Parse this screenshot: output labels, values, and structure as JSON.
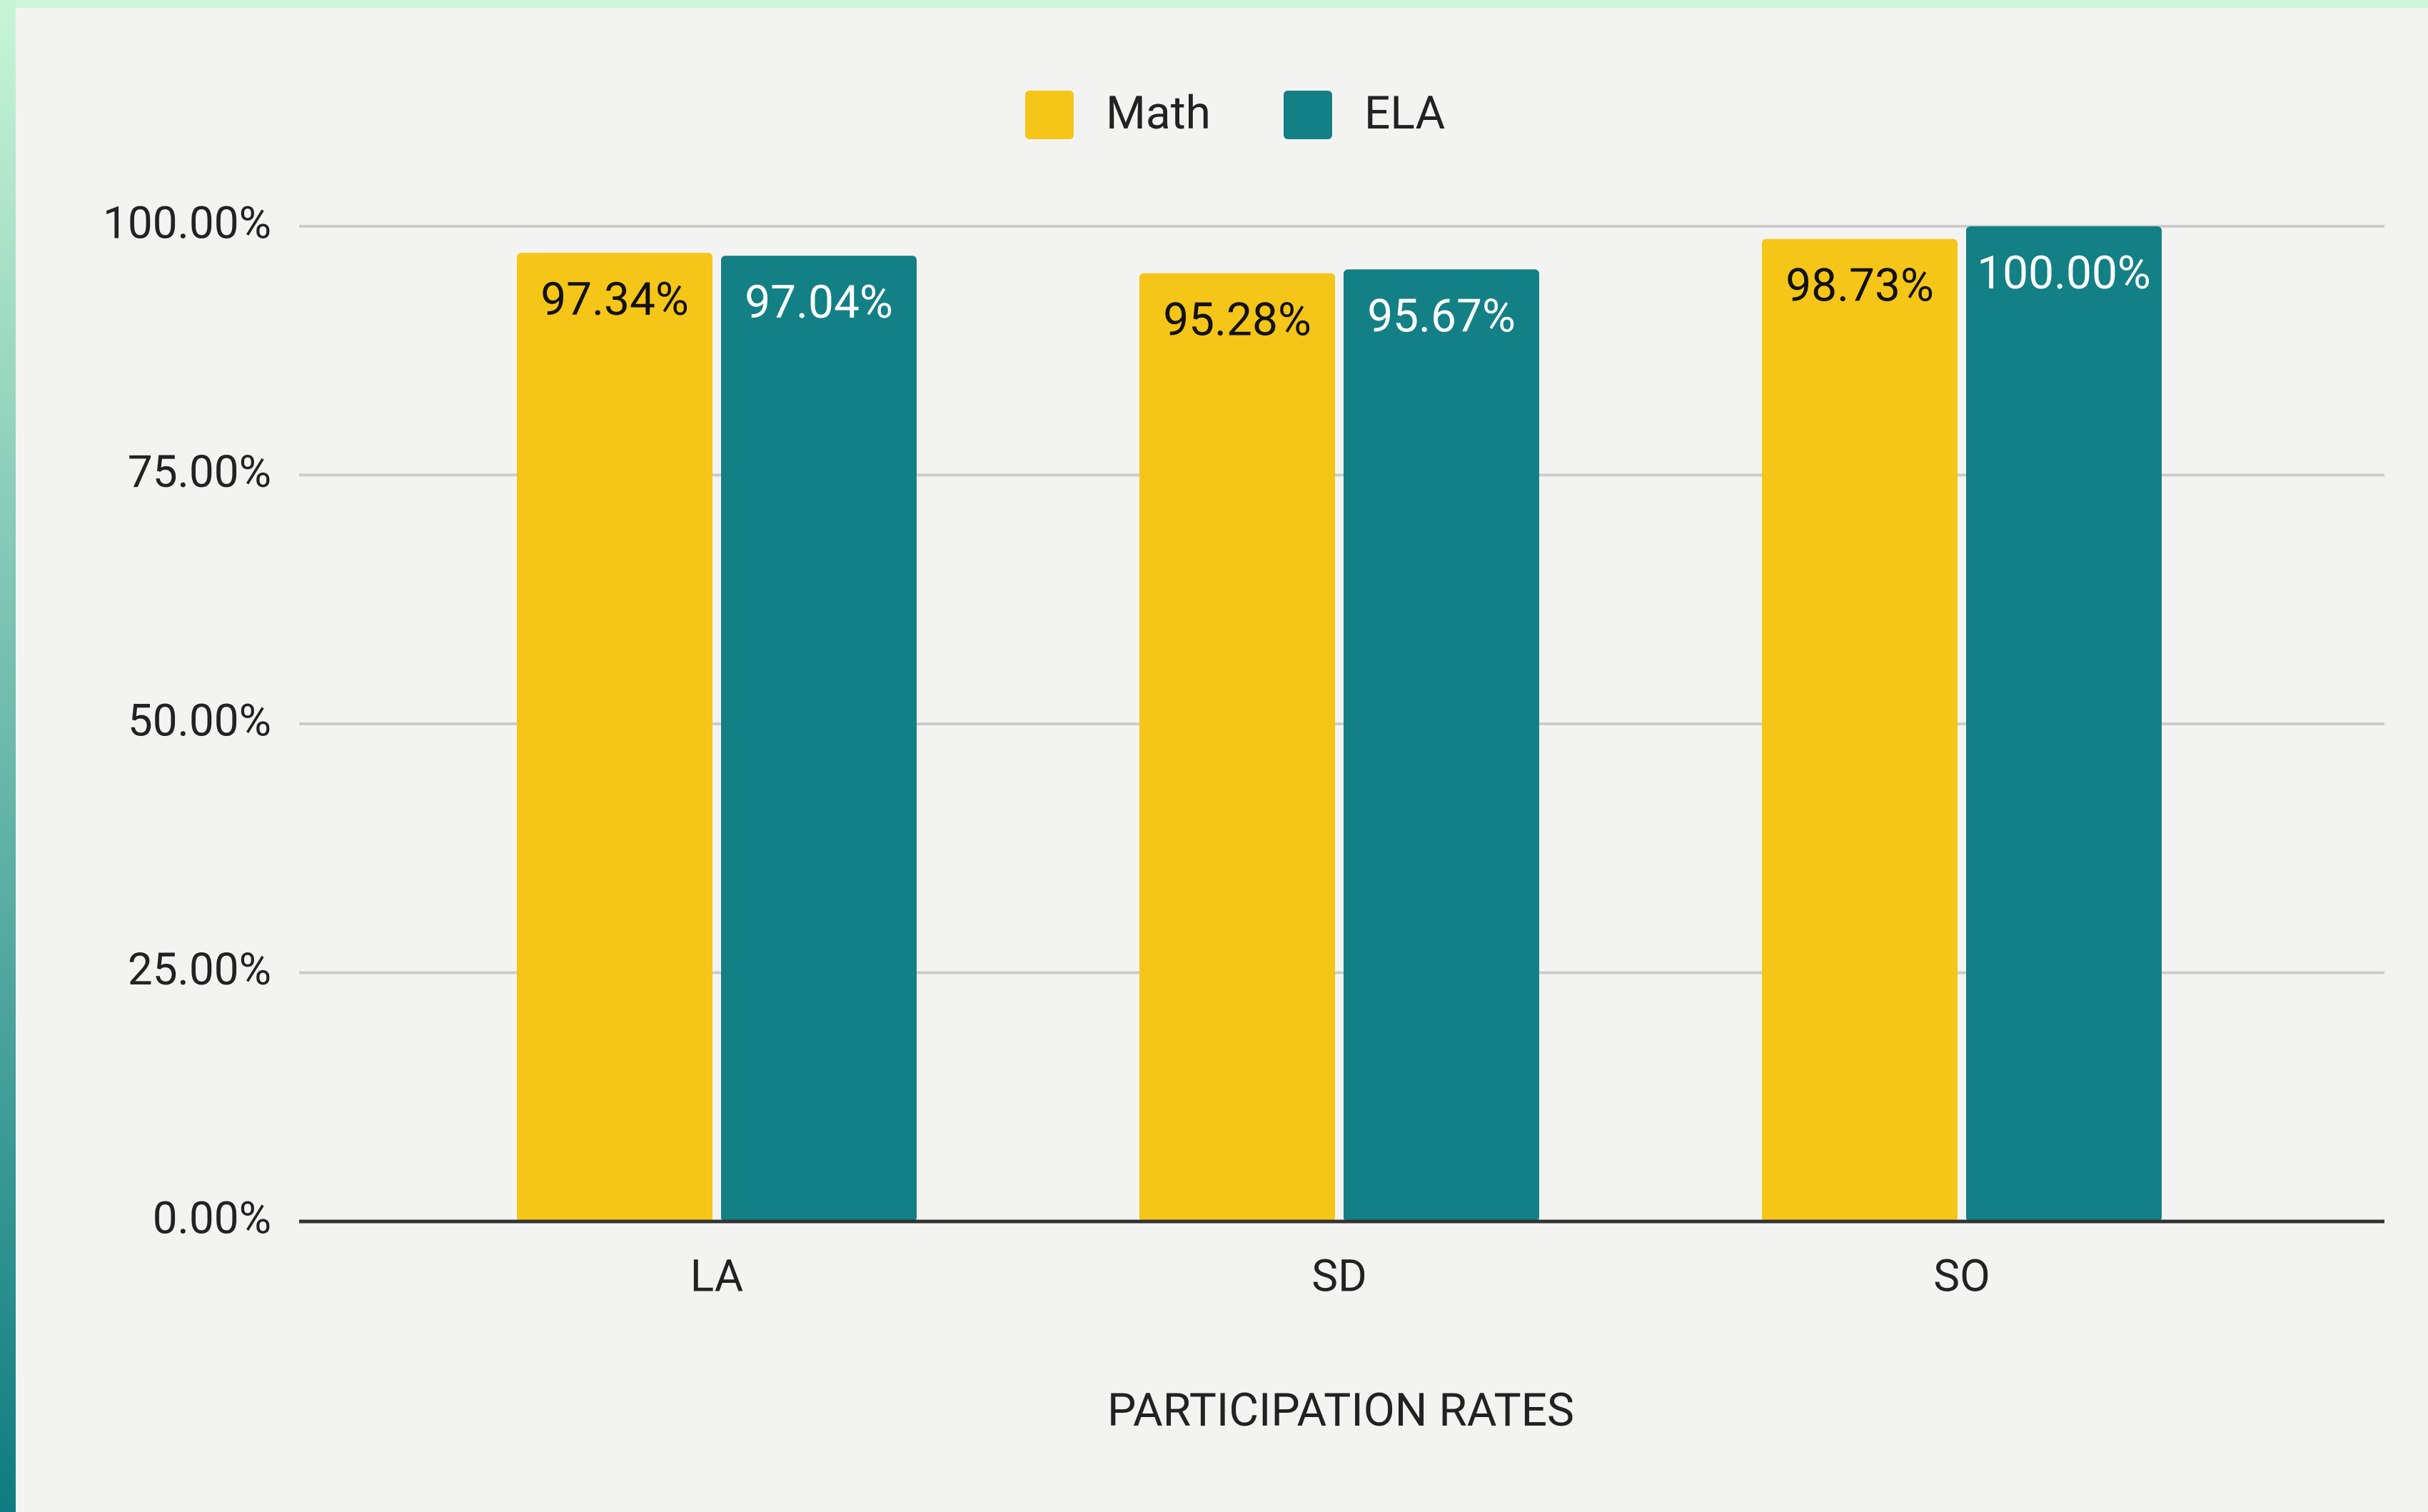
{
  "chart_data": {
    "type": "bar",
    "x_label": "PARTICIPATION RATES",
    "categories": [
      "LA",
      "SD",
      "SO"
    ],
    "series": [
      {
        "name": "Math",
        "color": "#f5c518",
        "values": [
          97.34,
          95.28,
          98.73
        ],
        "value_labels": [
          "97.34%",
          "95.28%",
          "98.73%"
        ]
      },
      {
        "name": "ELA",
        "color": "#138086",
        "values": [
          97.04,
          95.67,
          100
        ],
        "value_labels": [
          "97.04%",
          "95.67%",
          "100.00%"
        ]
      }
    ],
    "ylim": [
      0,
      100
    ],
    "yticks": [
      {
        "value": 0,
        "label": "0.00%"
      },
      {
        "value": 25,
        "label": "25.00%"
      },
      {
        "value": 50,
        "label": "50.00%"
      },
      {
        "value": 75,
        "label": "75.00%"
      },
      {
        "value": 100,
        "label": "100.00%"
      }
    ],
    "grid": true,
    "legend": "top"
  }
}
